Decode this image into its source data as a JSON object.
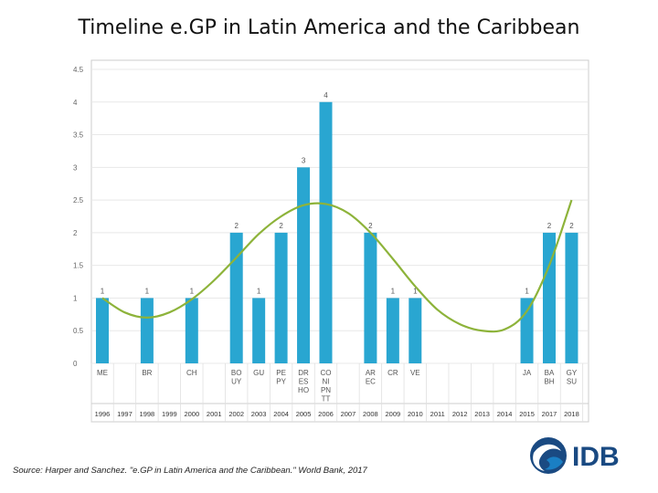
{
  "title": "Timeline e.GP in Latin America and the Caribbean",
  "source": "Source: Harper and Sanchez. \"e.GP in Latin America and the Caribbean.\" World Bank, 2017",
  "logo": {
    "text": "IDB",
    "colors": {
      "brand": "#1a4a82",
      "ring": "#1a7fc4"
    }
  },
  "colors": {
    "bar": "#29a6d1",
    "trend": "#8db33a",
    "grid": "#e8e8e8",
    "frame": "#cccccc"
  },
  "chart_data": {
    "type": "bar",
    "ylim": [
      0,
      4.5
    ],
    "yticks": [
      0,
      0.5,
      1,
      1.5,
      2,
      2.5,
      3,
      3.5,
      4,
      4.5
    ],
    "ytick_labels": [
      "0",
      "0.5",
      "1",
      "1.5",
      "2",
      "2.5",
      "3",
      "3.5",
      "4",
      "4.5"
    ],
    "categories": [
      "1996",
      "1997",
      "1998",
      "1999",
      "2000",
      "2001",
      "2002",
      "2003",
      "2004",
      "2005",
      "2006",
      "2007",
      "2008",
      "2009",
      "2010",
      "2011",
      "2012",
      "2013",
      "2014",
      "2015",
      "2017",
      "2018"
    ],
    "values": [
      1,
      0,
      1,
      0,
      1,
      0,
      2,
      1,
      2,
      3,
      4,
      0,
      2,
      1,
      1,
      0,
      0,
      0,
      0,
      1,
      2,
      2
    ],
    "value_labels": [
      "1",
      "",
      "1",
      "",
      "1",
      "",
      "2",
      "1",
      "2",
      "3",
      "4",
      "",
      "2",
      "1",
      "1",
      "",
      "",
      "",
      "",
      "1",
      "2",
      "2"
    ],
    "countries": [
      [
        "ME"
      ],
      [],
      [
        "BR"
      ],
      [],
      [
        "CH"
      ],
      [],
      [
        "BO",
        "UY"
      ],
      [
        "GU"
      ],
      [
        "PE",
        "PY"
      ],
      [
        "DR",
        "ES",
        "HO"
      ],
      [
        "CO",
        "NI",
        "PN",
        "TT"
      ],
      [],
      [
        "AR",
        "EC"
      ],
      [
        "CR"
      ],
      [
        "VE"
      ],
      [],
      [],
      [],
      [],
      [
        "JA"
      ],
      [
        "BA",
        "BH"
      ],
      [
        "GY",
        "SU"
      ]
    ],
    "trend": {
      "type": "polynomial",
      "points": [
        [
          0,
          1.0
        ],
        [
          1,
          0.78
        ],
        [
          2,
          0.7
        ],
        [
          3,
          0.78
        ],
        [
          4,
          0.98
        ],
        [
          5,
          1.27
        ],
        [
          6,
          1.62
        ],
        [
          7,
          1.98
        ],
        [
          8,
          2.25
        ],
        [
          9,
          2.42
        ],
        [
          10,
          2.44
        ],
        [
          11,
          2.3
        ],
        [
          12,
          2.0
        ],
        [
          13,
          1.6
        ],
        [
          14,
          1.18
        ],
        [
          15,
          0.82
        ],
        [
          16,
          0.6
        ],
        [
          17,
          0.5
        ],
        [
          18,
          0.52
        ],
        [
          19,
          0.8
        ],
        [
          20,
          1.5
        ],
        [
          21,
          2.5
        ]
      ]
    }
  }
}
